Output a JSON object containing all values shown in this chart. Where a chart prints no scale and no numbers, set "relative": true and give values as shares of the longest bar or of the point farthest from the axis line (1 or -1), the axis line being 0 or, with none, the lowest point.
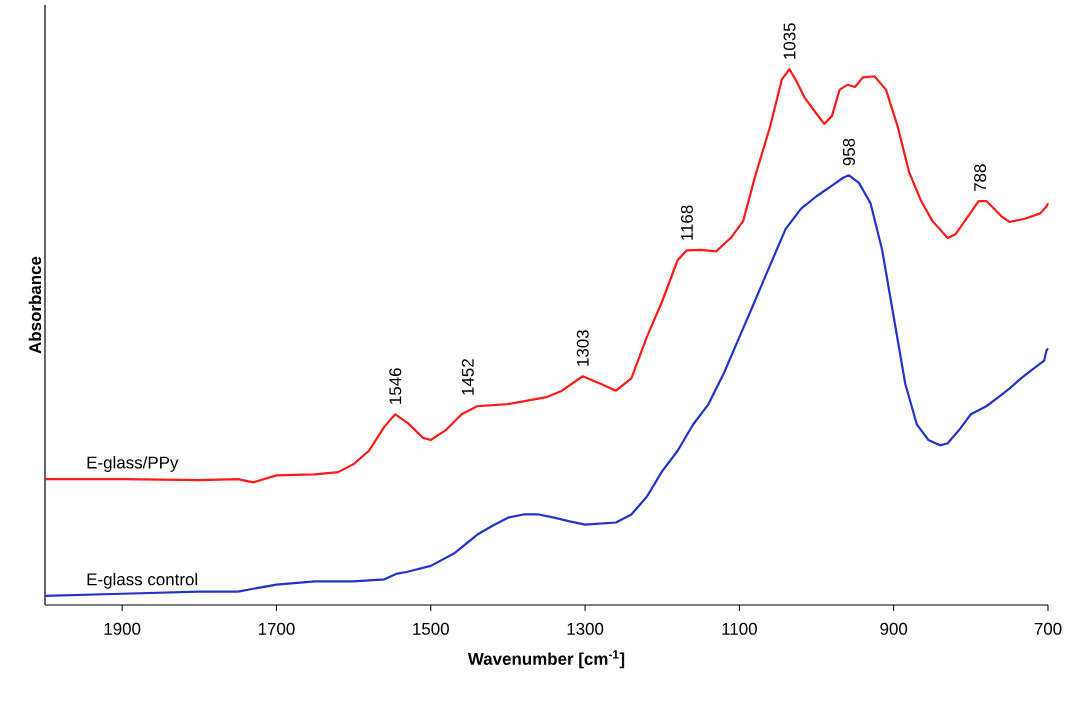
{
  "chart_data": {
    "type": "line",
    "relative": true,
    "xlabel": "Wavenumber [cm$^{-1}$]",
    "ylabel": "Absorbance",
    "xlim": [
      2000,
      700
    ],
    "xticks": [
      1900,
      1700,
      1500,
      1300,
      1100,
      900,
      700
    ],
    "series": [
      {
        "name": "E-glass/PPy",
        "color": "#ff1a1a",
        "x": [
          2000,
          1900,
          1800,
          1750,
          1730,
          1700,
          1650,
          1620,
          1600,
          1580,
          1560,
          1546,
          1530,
          1510,
          1500,
          1480,
          1460,
          1440,
          1420,
          1400,
          1350,
          1330,
          1303,
          1280,
          1260,
          1240,
          1220,
          1200,
          1180,
          1168,
          1150,
          1130,
          1110,
          1095,
          1080,
          1060,
          1045,
          1035,
          1025,
          1015,
          1000,
          990,
          980,
          970,
          960,
          950,
          940,
          925,
          910,
          895,
          880,
          865,
          850,
          830,
          820,
          800,
          790,
          780,
          770,
          760,
          750,
          730,
          710,
          702,
          700
        ],
        "values": [
          0.235,
          0.235,
          0.233,
          0.235,
          0.229,
          0.242,
          0.244,
          0.248,
          0.263,
          0.288,
          0.333,
          0.356,
          0.34,
          0.312,
          0.308,
          0.327,
          0.356,
          0.371,
          0.373,
          0.375,
          0.388,
          0.4,
          0.427,
          0.413,
          0.4,
          0.423,
          0.5,
          0.567,
          0.644,
          0.662,
          0.663,
          0.66,
          0.687,
          0.717,
          0.798,
          0.894,
          0.981,
          1.0,
          0.975,
          0.946,
          0.917,
          0.898,
          0.913,
          0.962,
          0.971,
          0.967,
          0.985,
          0.987,
          0.962,
          0.894,
          0.808,
          0.756,
          0.717,
          0.685,
          0.692,
          0.733,
          0.754,
          0.754,
          0.74,
          0.725,
          0.715,
          0.721,
          0.731,
          0.744,
          0.75
        ]
      },
      {
        "name": "E-glass control",
        "color": "#2233cc",
        "x": [
          2000,
          1900,
          1800,
          1750,
          1720,
          1700,
          1650,
          1600,
          1560,
          1545,
          1530,
          1500,
          1470,
          1440,
          1420,
          1400,
          1380,
          1360,
          1340,
          1320,
          1300,
          1260,
          1240,
          1220,
          1200,
          1180,
          1160,
          1140,
          1120,
          1100,
          1080,
          1060,
          1040,
          1020,
          1000,
          980,
          965,
          958,
          945,
          930,
          915,
          900,
          885,
          870,
          855,
          840,
          830,
          815,
          800,
          780,
          765,
          750,
          735,
          720,
          705,
          702,
          700
        ],
        "values": [
          0.017,
          0.021,
          0.025,
          0.025,
          0.033,
          0.038,
          0.044,
          0.044,
          0.048,
          0.058,
          0.062,
          0.073,
          0.096,
          0.131,
          0.148,
          0.163,
          0.169,
          0.169,
          0.163,
          0.156,
          0.15,
          0.154,
          0.169,
          0.202,
          0.25,
          0.288,
          0.337,
          0.375,
          0.433,
          0.5,
          0.567,
          0.635,
          0.702,
          0.74,
          0.763,
          0.783,
          0.798,
          0.802,
          0.788,
          0.75,
          0.663,
          0.538,
          0.413,
          0.337,
          0.308,
          0.298,
          0.302,
          0.327,
          0.356,
          0.371,
          0.387,
          0.404,
          0.423,
          0.44,
          0.456,
          0.475,
          0.479
        ]
      }
    ],
    "annotations": [
      {
        "text": "1546",
        "x": 1546,
        "y": 0.356
      },
      {
        "text": "1452",
        "x": 1452,
        "y": 0.373
      },
      {
        "text": "1303",
        "x": 1303,
        "y": 0.427
      },
      {
        "text": "1168",
        "x": 1168,
        "y": 0.662
      },
      {
        "text": "1035",
        "x": 1035,
        "y": 1.0
      },
      {
        "text": "958",
        "x": 958,
        "y": 0.802
      },
      {
        "text": "788",
        "x": 788,
        "y": 0.754
      }
    ]
  }
}
